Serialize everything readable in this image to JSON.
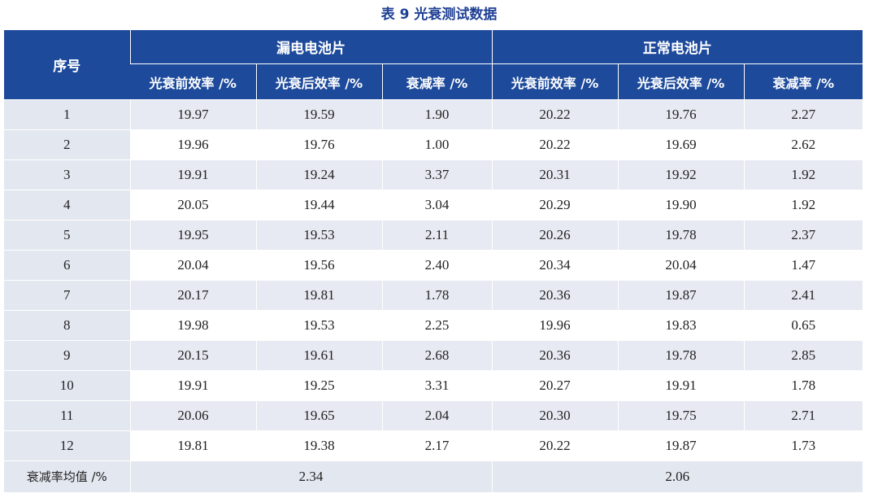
{
  "caption": "表 9  光衰测试数据",
  "headers": {
    "index": "序号",
    "group_leak": "漏电电池片",
    "group_normal": "正常电池片",
    "sub": [
      "光衰前效率 /%",
      "光衰后效率 /%",
      "衰减率 /%",
      "光衰前效率 /%",
      "光衰后效率 /%",
      "衰减率 /%"
    ]
  },
  "rows": [
    [
      "1",
      "19.97",
      "19.59",
      "1.90",
      "20.22",
      "19.76",
      "2.27"
    ],
    [
      "2",
      "19.96",
      "19.76",
      "1.00",
      "20.22",
      "19.69",
      "2.62"
    ],
    [
      "3",
      "19.91",
      "19.24",
      "3.37",
      "20.31",
      "19.92",
      "1.92"
    ],
    [
      "4",
      "20.05",
      "19.44",
      "3.04",
      "20.29",
      "19.90",
      "1.92"
    ],
    [
      "5",
      "19.95",
      "19.53",
      "2.11",
      "20.26",
      "19.78",
      "2.37"
    ],
    [
      "6",
      "20.04",
      "19.56",
      "2.40",
      "20.34",
      "20.04",
      "1.47"
    ],
    [
      "7",
      "20.17",
      "19.81",
      "1.78",
      "20.36",
      "19.87",
      "2.41"
    ],
    [
      "8",
      "19.98",
      "19.53",
      "2.25",
      "19.96",
      "19.83",
      "0.65"
    ],
    [
      "9",
      "20.15",
      "19.61",
      "2.68",
      "20.36",
      "19.78",
      "2.85"
    ],
    [
      "10",
      "19.91",
      "19.25",
      "3.31",
      "20.27",
      "19.91",
      "1.78"
    ],
    [
      "11",
      "20.06",
      "19.65",
      "2.04",
      "20.30",
      "19.75",
      "2.71"
    ],
    [
      "12",
      "19.81",
      "19.38",
      "2.17",
      "20.22",
      "19.87",
      "1.73"
    ]
  ],
  "average": {
    "label": "衰减率均值 /%",
    "leak": "2.34",
    "normal": "2.06"
  }
}
